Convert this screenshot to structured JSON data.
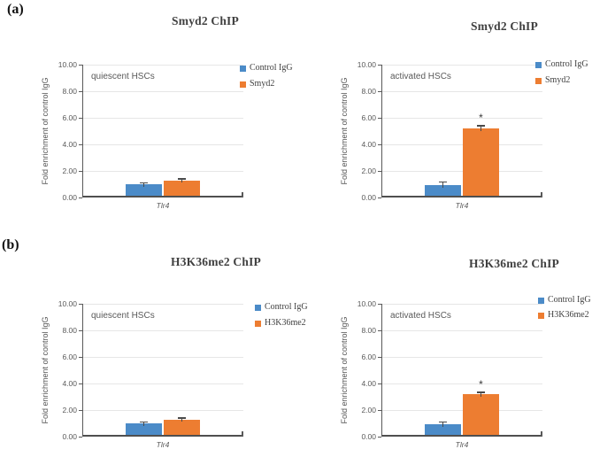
{
  "figure": {
    "panel_labels": [
      "(a)",
      "(b)"
    ]
  },
  "colors": {
    "control_igg": "#4B8BC8",
    "target": "#ED7D31",
    "axis": "#595959",
    "grid": "#E6E6E6",
    "text": "#595959",
    "title": "#404040"
  },
  "chart_data": [
    {
      "type": "bar",
      "panel": "(a)",
      "title": "Smyd2 ChIP",
      "condition_label": "quiescent HSCs",
      "ylabel": "Fold enrichment of control IgG",
      "xlabel": "",
      "categories": [
        "Tlr4"
      ],
      "ylim": [
        0,
        10
      ],
      "ytick_labels": [
        "0.00",
        "2.00",
        "4.00",
        "6.00",
        "8.00",
        "10.00"
      ],
      "grid": true,
      "legend_position": "top-right",
      "series": [
        {
          "name": "Control IgG",
          "values": [
            1.0
          ],
          "error": [
            0.08
          ],
          "color": "#4B8BC8",
          "marker": null
        },
        {
          "name": "Smyd2",
          "values": [
            1.3
          ],
          "error": [
            0.08
          ],
          "color": "#ED7D31",
          "marker": null
        }
      ]
    },
    {
      "type": "bar",
      "panel": "(a)",
      "title": "Smyd2 ChIP",
      "condition_label": "activated HSCs",
      "ylabel": "Fold enrichment of control IgG",
      "xlabel": "",
      "categories": [
        "Tlr4"
      ],
      "ylim": [
        0,
        10
      ],
      "ytick_labels": [
        "0.00",
        "2.00",
        "4.00",
        "6.00",
        "8.00",
        "10.00"
      ],
      "grid": true,
      "legend_position": "top-right",
      "series": [
        {
          "name": "Control IgG",
          "values": [
            0.95
          ],
          "error": [
            0.2
          ],
          "color": "#4B8BC8",
          "marker": null
        },
        {
          "name": "Smyd2",
          "values": [
            5.2
          ],
          "error": [
            0.18
          ],
          "color": "#ED7D31",
          "marker": "*"
        }
      ]
    },
    {
      "type": "bar",
      "panel": "(b)",
      "title": "H3K36me2 ChIP",
      "condition_label": "quiescent HSCs",
      "ylabel": "Fold enrichment of control IgG",
      "xlabel": "",
      "categories": [
        "Tlr4"
      ],
      "ylim": [
        0,
        10
      ],
      "ytick_labels": [
        "0.00",
        "2.00",
        "4.00",
        "6.00",
        "8.00",
        "10.00"
      ],
      "grid": true,
      "legend_position": "top-right",
      "series": [
        {
          "name": "Control IgG",
          "values": [
            1.0
          ],
          "error": [
            0.08
          ],
          "color": "#4B8BC8",
          "marker": null
        },
        {
          "name": "H3K36me2",
          "values": [
            1.3
          ],
          "error": [
            0.08
          ],
          "color": "#ED7D31",
          "marker": null
        }
      ]
    },
    {
      "type": "bar",
      "panel": "(b)",
      "title": "H3K36me2 ChIP",
      "condition_label": "activated HSCs",
      "ylabel": "Fold enrichment of control IgG",
      "xlabel": "",
      "categories": [
        "Tlr4"
      ],
      "ylim": [
        0,
        10
      ],
      "ytick_labels": [
        "0.00",
        "2.00",
        "4.00",
        "6.00",
        "8.00",
        "10.00"
      ],
      "grid": true,
      "legend_position": "top-right",
      "series": [
        {
          "name": "Control IgG",
          "values": [
            0.95
          ],
          "error": [
            0.15
          ],
          "color": "#4B8BC8",
          "marker": null
        },
        {
          "name": "H3K36me2",
          "values": [
            3.2
          ],
          "error": [
            0.12
          ],
          "color": "#ED7D31",
          "marker": "*"
        }
      ]
    }
  ]
}
